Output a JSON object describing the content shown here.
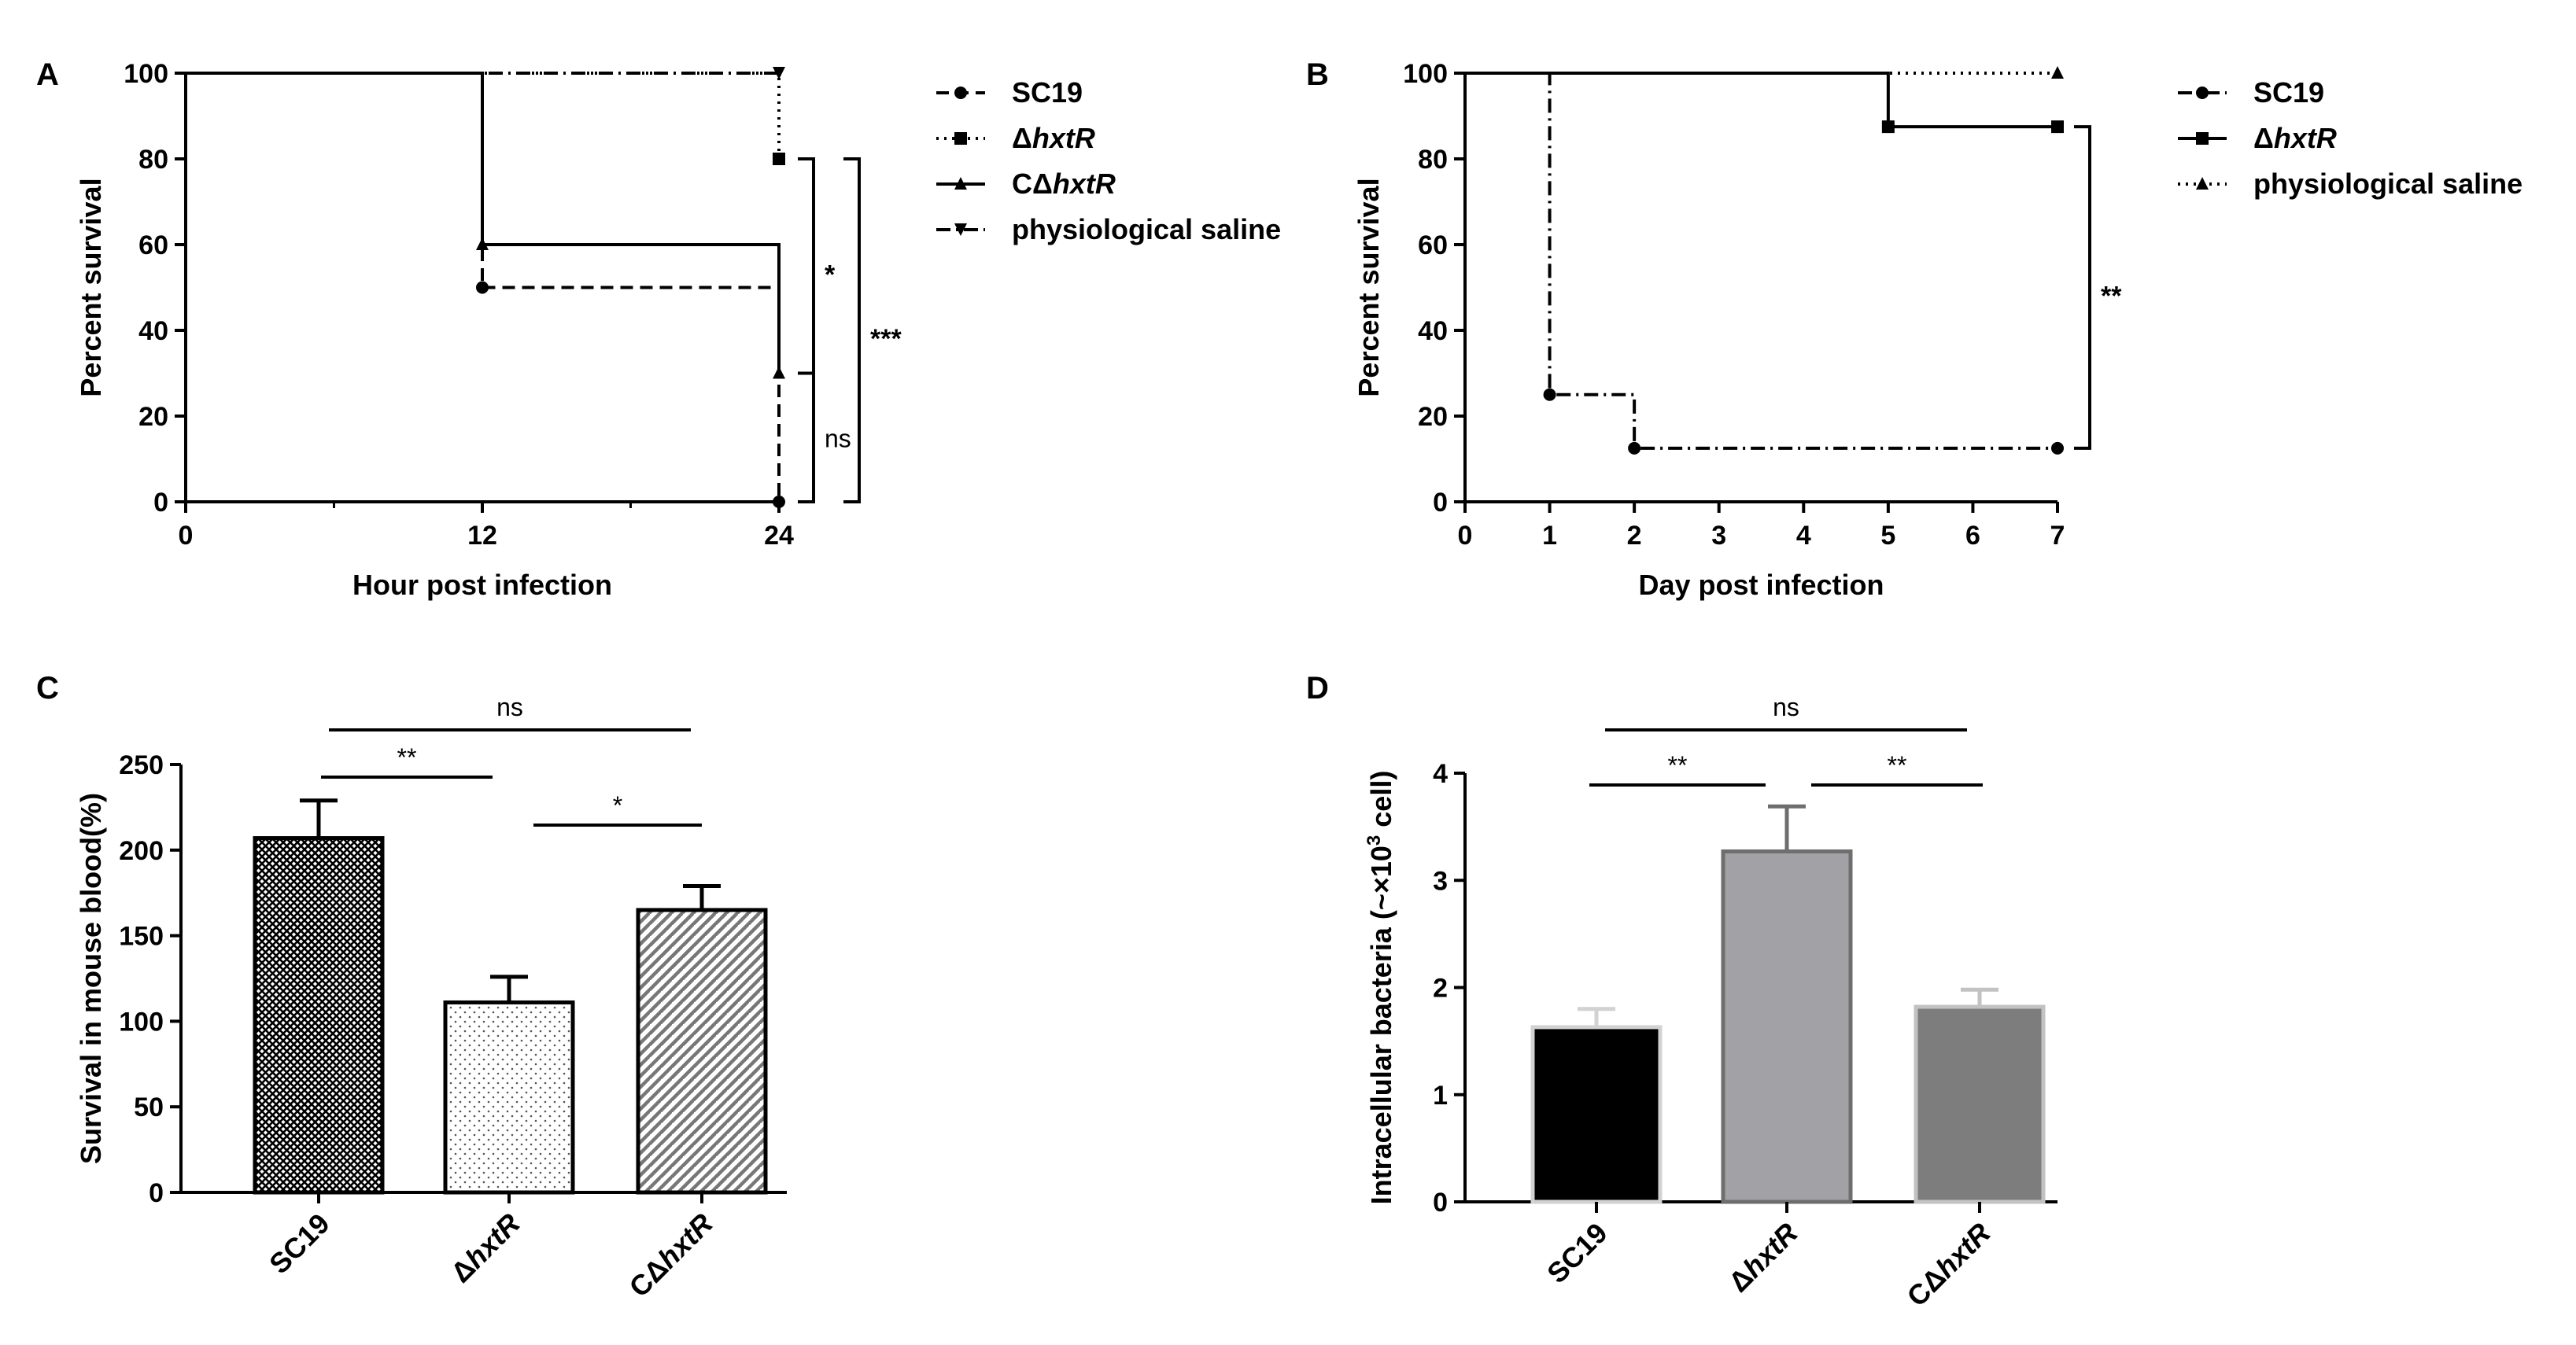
{
  "chart_data": [
    {
      "id": "A",
      "panel_label": "A",
      "type": "line",
      "subtype": "kaplan-meier-step",
      "xlabel": "Hour post infection",
      "ylabel": "Percent survival",
      "xlim": [
        0,
        24
      ],
      "ylim": [
        0,
        100
      ],
      "x_ticks": [
        "0",
        "12",
        "24"
      ],
      "y_ticks": [
        "0",
        "20",
        "40",
        "60",
        "80",
        "100"
      ],
      "series": [
        {
          "name": "SC19",
          "legend_plain": "SC19",
          "legend_italic": "",
          "marker": "circle",
          "dash": "dashed",
          "x": [
            0,
            12,
            24
          ],
          "y": [
            100,
            50,
            0
          ]
        },
        {
          "name": "ΔhxtR",
          "legend_plain": "Δ",
          "legend_italic": "hxtR",
          "marker": "square",
          "dash": "dotted",
          "x": [
            0,
            24
          ],
          "y": [
            100,
            80
          ]
        },
        {
          "name": "CΔhxtR",
          "legend_plain": "CΔ",
          "legend_italic": "hxtR",
          "marker": "triangle",
          "dash": "solid",
          "x": [
            0,
            12,
            24
          ],
          "y": [
            100,
            60,
            30
          ]
        },
        {
          "name": "physiological saline",
          "legend_plain": "physiological saline",
          "legend_italic": "",
          "marker": "triangle-down",
          "dash": "dashdot",
          "x": [
            0,
            24
          ],
          "y": [
            100,
            100
          ]
        }
      ],
      "significance": [
        {
          "label": "*",
          "between": [
            "ΔhxtR",
            "CΔhxtR"
          ],
          "y_range": [
            30,
            80
          ]
        },
        {
          "label": "ns",
          "between": [
            "CΔhxtR",
            "SC19"
          ],
          "y_range": [
            0,
            30
          ]
        },
        {
          "label": "***",
          "between": [
            "ΔhxtR",
            "SC19"
          ],
          "y_range": [
            0,
            80
          ]
        }
      ]
    },
    {
      "id": "B",
      "panel_label": "B",
      "type": "line",
      "subtype": "kaplan-meier-step",
      "xlabel": "Day post infection",
      "ylabel": "Percent survival",
      "xlim": [
        0,
        7
      ],
      "ylim": [
        0,
        100
      ],
      "x_ticks": [
        "0",
        "1",
        "2",
        "3",
        "4",
        "5",
        "6",
        "7"
      ],
      "y_ticks": [
        "0",
        "20",
        "40",
        "60",
        "80",
        "100"
      ],
      "series": [
        {
          "name": "SC19",
          "legend_plain": "SC19",
          "legend_italic": "",
          "marker": "circle",
          "dash": "dashdot",
          "x": [
            0,
            1,
            2,
            7
          ],
          "y": [
            100,
            25,
            12.5,
            12.5
          ]
        },
        {
          "name": "ΔhxtR",
          "legend_plain": "Δ",
          "legend_italic": "hxtR",
          "marker": "square",
          "dash": "solid",
          "x": [
            0,
            5,
            7
          ],
          "y": [
            100,
            87.5,
            87.5
          ]
        },
        {
          "name": "physiological saline",
          "legend_plain": "physiological saline",
          "legend_italic": "",
          "marker": "triangle",
          "dash": "dotted",
          "x": [
            0,
            7
          ],
          "y": [
            100,
            100
          ]
        }
      ],
      "significance": [
        {
          "label": "**",
          "between": [
            "ΔhxtR",
            "SC19"
          ],
          "y_range": [
            12.5,
            87.5
          ]
        }
      ]
    },
    {
      "id": "C",
      "panel_label": "C",
      "type": "bar",
      "xlabel": "",
      "ylabel": "Survival in mouse blood(%)",
      "ylim": [
        0,
        250
      ],
      "y_ticks": [
        "0",
        "50",
        "100",
        "150",
        "200",
        "250"
      ],
      "categories": [
        {
          "plain": "SC19",
          "italic": ""
        },
        {
          "plain": "Δ",
          "italic": "hxtR"
        },
        {
          "plain": "CΔ",
          "italic": "hxtR"
        }
      ],
      "values": [
        207,
        111,
        165
      ],
      "errors": [
        22,
        15,
        14
      ],
      "fills": [
        "crosshatch",
        "dots",
        "diagonal"
      ],
      "significance": [
        {
          "label": "**",
          "pair": [
            0,
            1
          ]
        },
        {
          "label": "*",
          "pair": [
            1,
            2
          ]
        },
        {
          "label": "ns",
          "pair": [
            0,
            2
          ]
        }
      ]
    },
    {
      "id": "D",
      "panel_label": "D",
      "type": "bar",
      "xlabel": "",
      "ylabel": "Intracellular bacteria (~×10³ cell)",
      "ylabel_parts": [
        "Intracellular bacteria (~×10",
        "3",
        " cell)"
      ],
      "ylim": [
        0,
        4
      ],
      "y_ticks": [
        "0",
        "1",
        "2",
        "3",
        "4"
      ],
      "categories": [
        {
          "plain": "SC19",
          "italic": ""
        },
        {
          "plain": "Δ",
          "italic": "hxtR"
        },
        {
          "plain": "CΔ",
          "italic": "hxtR"
        }
      ],
      "values": [
        1.63,
        3.27,
        1.82
      ],
      "errors": [
        0.17,
        0.42,
        0.16
      ],
      "colors": [
        "#000000",
        "#a2a1a6",
        "#7d7d7d"
      ],
      "edge_colors": [
        "#d2d2d2",
        "#6e6e6e",
        "#c2c2c2"
      ],
      "significance": [
        {
          "label": "**",
          "pair": [
            0,
            1
          ]
        },
        {
          "label": "**",
          "pair": [
            1,
            2
          ]
        },
        {
          "label": "ns",
          "pair": [
            0,
            2
          ]
        }
      ]
    }
  ]
}
